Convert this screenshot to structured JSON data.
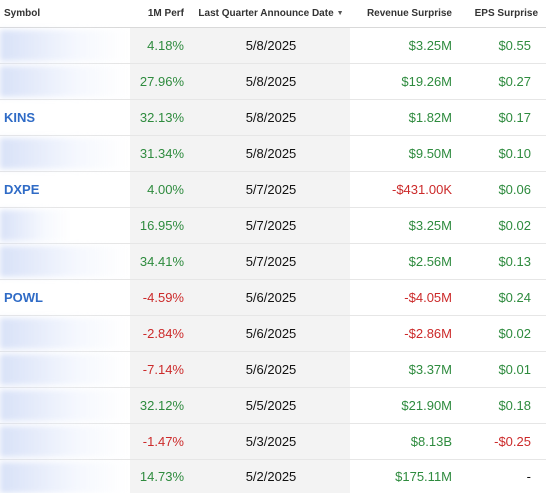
{
  "headers": {
    "symbol": "Symbol",
    "perf": "1M Perf",
    "date": "Last Quarter Announce Date",
    "revenue": "Revenue Surprise",
    "eps": "EPS Surprise"
  },
  "rows": [
    {
      "symbol": "",
      "perf": "4.18%",
      "perf_sign": "pos",
      "date": "5/8/2025",
      "revenue": "$3.25M",
      "revenue_sign": "pos",
      "eps": "$0.55",
      "eps_sign": "pos",
      "blurred": true
    },
    {
      "symbol": "",
      "perf": "27.96%",
      "perf_sign": "pos",
      "date": "5/8/2025",
      "revenue": "$19.26M",
      "revenue_sign": "pos",
      "eps": "$0.27",
      "eps_sign": "pos",
      "blurred": true
    },
    {
      "symbol": "KINS",
      "perf": "32.13%",
      "perf_sign": "pos",
      "date": "5/8/2025",
      "revenue": "$1.82M",
      "revenue_sign": "pos",
      "eps": "$0.17",
      "eps_sign": "pos",
      "blurred": false
    },
    {
      "symbol": "",
      "perf": "31.34%",
      "perf_sign": "pos",
      "date": "5/8/2025",
      "revenue": "$9.50M",
      "revenue_sign": "pos",
      "eps": "$0.10",
      "eps_sign": "pos",
      "blurred": true
    },
    {
      "symbol": "DXPE",
      "perf": "4.00%",
      "perf_sign": "pos",
      "date": "5/7/2025",
      "revenue": "-$431.00K",
      "revenue_sign": "neg",
      "eps": "$0.06",
      "eps_sign": "pos",
      "blurred": false
    },
    {
      "symbol": "",
      "perf": "16.95%",
      "perf_sign": "pos",
      "date": "5/7/2025",
      "revenue": "$3.25M",
      "revenue_sign": "pos",
      "eps": "$0.02",
      "eps_sign": "pos",
      "blurred": true
    },
    {
      "symbol": "",
      "perf": "34.41%",
      "perf_sign": "pos",
      "date": "5/7/2025",
      "revenue": "$2.56M",
      "revenue_sign": "pos",
      "eps": "$0.13",
      "eps_sign": "pos",
      "blurred": true
    },
    {
      "symbol": "POWL",
      "perf": "-4.59%",
      "perf_sign": "neg",
      "date": "5/6/2025",
      "revenue": "-$4.05M",
      "revenue_sign": "neg",
      "eps": "$0.24",
      "eps_sign": "pos",
      "blurred": false
    },
    {
      "symbol": "",
      "perf": "-2.84%",
      "perf_sign": "neg",
      "date": "5/6/2025",
      "revenue": "-$2.86M",
      "revenue_sign": "neg",
      "eps": "$0.02",
      "eps_sign": "pos",
      "blurred": true
    },
    {
      "symbol": "",
      "perf": "-7.14%",
      "perf_sign": "neg",
      "date": "5/6/2025",
      "revenue": "$3.37M",
      "revenue_sign": "pos",
      "eps": "$0.01",
      "eps_sign": "pos",
      "blurred": true
    },
    {
      "symbol": "",
      "perf": "32.12%",
      "perf_sign": "pos",
      "date": "5/5/2025",
      "revenue": "$21.90M",
      "revenue_sign": "pos",
      "eps": "$0.18",
      "eps_sign": "pos",
      "blurred": true
    },
    {
      "symbol": "",
      "perf": "-1.47%",
      "perf_sign": "neg",
      "date": "5/3/2025",
      "revenue": "$8.13B",
      "revenue_sign": "pos",
      "eps": "-$0.25",
      "eps_sign": "neg",
      "blurred": true
    },
    {
      "symbol": "",
      "perf": "14.73%",
      "perf_sign": "pos",
      "date": "5/2/2025",
      "revenue": "$175.11M",
      "revenue_sign": "pos",
      "eps": "-",
      "eps_sign": "neu",
      "blurred": true
    }
  ],
  "colors": {
    "positive": "#2e8b3e",
    "negative": "#cc2a2a",
    "symbol_link": "#2f6bc6"
  },
  "icons": {
    "sort": "sort-desc-icon"
  }
}
